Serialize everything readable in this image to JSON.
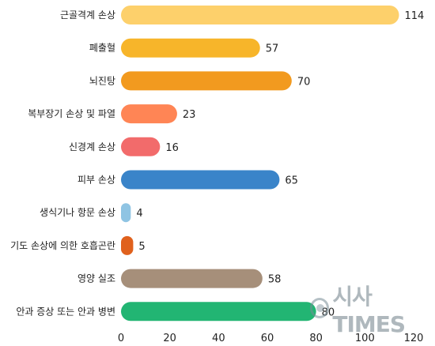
{
  "chart_data": {
    "type": "bar",
    "orientation": "horizontal",
    "categories": [
      "근골격계 손상",
      "폐출혈",
      "뇌진탕",
      "복부장기 손상 및 파열",
      "신경계 손상",
      "피부 손상",
      "생식기나 항문 손상",
      "기도 손상에 의한 호흡곤란",
      "영양 실조",
      "안과 증상 또는 안과 병변"
    ],
    "values": [
      114,
      57,
      70,
      23,
      16,
      65,
      4,
      5,
      58,
      80
    ],
    "colors": [
      "#fdd06b",
      "#f7b52a",
      "#f29a1f",
      "#ff8555",
      "#f26b6b",
      "#3a84c9",
      "#8fc4e3",
      "#e0611d",
      "#a68f7a",
      "#22b573"
    ],
    "xticks": [
      0,
      20,
      40,
      60,
      80,
      100,
      120
    ],
    "xlim": [
      0,
      120
    ],
    "title": "",
    "xlabel": "",
    "ylabel": "",
    "grid": false,
    "legend": "none"
  },
  "watermark": {
    "text": "시사TIMES",
    "icon": "globe-logo-icon"
  }
}
